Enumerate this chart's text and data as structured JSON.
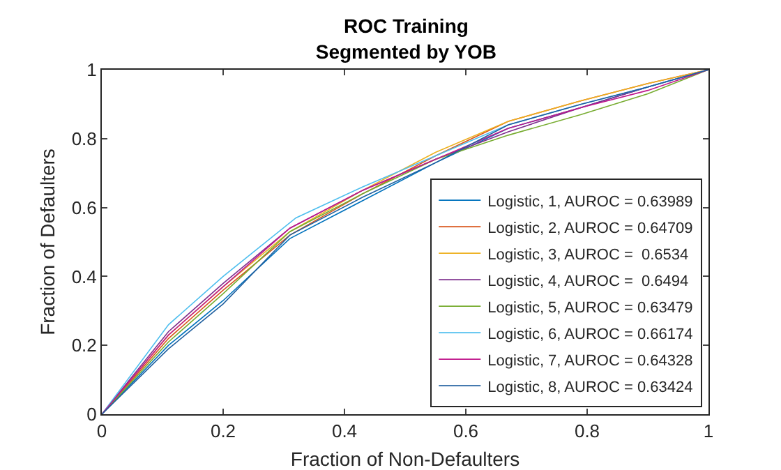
{
  "chart_data": {
    "type": "line",
    "title": "ROC Training",
    "subtitle": "Segmented by YOB",
    "xlabel": "Fraction of Non-Defaulters",
    "ylabel": "Fraction of Defaulters",
    "xlim": [
      0,
      1
    ],
    "ylim": [
      0,
      1
    ],
    "xticks": [
      0,
      0.2,
      0.4,
      0.6,
      0.8,
      1
    ],
    "yticks": [
      0,
      0.2,
      0.4,
      0.6,
      0.8,
      1
    ],
    "grid": false,
    "legend": "bottom right",
    "line_style": "solid",
    "marker": "none",
    "series": [
      {
        "name": "Logistic, 1, AUROC = 0.63989",
        "color": "#0072bd",
        "x": [
          0,
          0.11,
          0.2,
          0.31,
          0.43,
          0.55,
          0.67,
          0.79,
          0.9,
          1
        ],
        "values": [
          0,
          0.2,
          0.33,
          0.51,
          0.62,
          0.73,
          0.83,
          0.89,
          0.95,
          1
        ]
      },
      {
        "name": "Logistic, 2, AUROC = 0.64709",
        "color": "#d95319",
        "x": [
          0,
          0.11,
          0.2,
          0.31,
          0.43,
          0.55,
          0.67,
          0.79,
          0.9,
          1
        ],
        "values": [
          0,
          0.22,
          0.36,
          0.52,
          0.64,
          0.75,
          0.85,
          0.91,
          0.96,
          1
        ]
      },
      {
        "name": "Logistic, 3, AUROC =  0.6534",
        "color": "#edb120",
        "x": [
          0,
          0.11,
          0.2,
          0.31,
          0.43,
          0.55,
          0.67,
          0.79,
          0.9,
          1
        ],
        "values": [
          0,
          0.23,
          0.37,
          0.53,
          0.65,
          0.76,
          0.85,
          0.91,
          0.96,
          1
        ]
      },
      {
        "name": "Logistic, 4, AUROC =  0.6494",
        "color": "#7e2f8e",
        "x": [
          0,
          0.11,
          0.2,
          0.31,
          0.43,
          0.55,
          0.67,
          0.79,
          0.9,
          1
        ],
        "values": [
          0,
          0.24,
          0.38,
          0.54,
          0.65,
          0.74,
          0.82,
          0.89,
          0.95,
          1
        ]
      },
      {
        "name": "Logistic, 5, AUROC = 0.63479",
        "color": "#77ac30",
        "x": [
          0,
          0.11,
          0.2,
          0.31,
          0.43,
          0.55,
          0.67,
          0.79,
          0.9,
          1
        ],
        "values": [
          0,
          0.21,
          0.35,
          0.53,
          0.64,
          0.74,
          0.81,
          0.87,
          0.93,
          1
        ]
      },
      {
        "name": "Logistic, 6, AUROC = 0.66174",
        "color": "#4dbeee",
        "x": [
          0,
          0.11,
          0.2,
          0.32,
          0.43,
          0.55,
          0.67,
          0.79,
          0.9,
          1
        ],
        "values": [
          0,
          0.26,
          0.4,
          0.57,
          0.66,
          0.75,
          0.84,
          0.9,
          0.95,
          1
        ]
      },
      {
        "name": "Logistic, 7, AUROC = 0.64328",
        "color": "#c0188c",
        "x": [
          0,
          0.11,
          0.2,
          0.31,
          0.43,
          0.55,
          0.67,
          0.79,
          0.9,
          1
        ],
        "values": [
          0,
          0.23,
          0.37,
          0.54,
          0.65,
          0.74,
          0.83,
          0.89,
          0.94,
          1
        ]
      },
      {
        "name": "Logistic, 8, AUROC = 0.63424",
        "color": "#1f5f9f",
        "x": [
          0,
          0.11,
          0.2,
          0.31,
          0.43,
          0.55,
          0.67,
          0.79,
          0.9,
          1
        ],
        "values": [
          0,
          0.19,
          0.32,
          0.52,
          0.63,
          0.73,
          0.84,
          0.9,
          0.95,
          1
        ]
      }
    ]
  }
}
